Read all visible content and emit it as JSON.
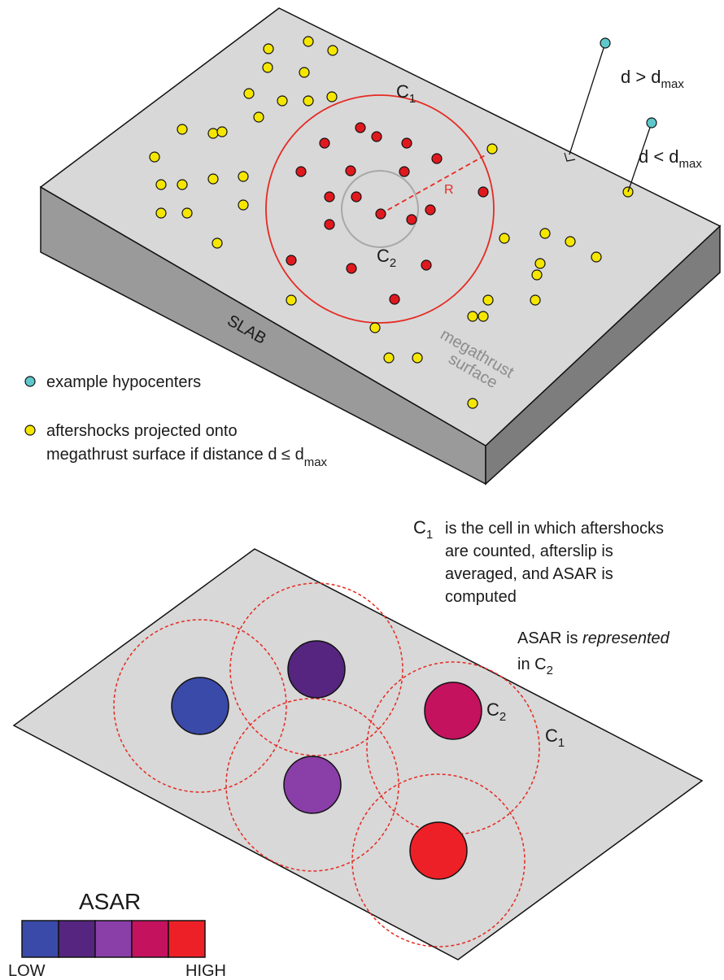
{
  "labels": {
    "c1_top": "C",
    "c1_top_sub": "1",
    "c2_top": "C",
    "c2_top_sub": "2",
    "radius": "R",
    "slab": "SLAB",
    "megathrust_line1": "megathrust",
    "megathrust_line2": "surface",
    "d_gt": "d > d",
    "d_gt_sub": "max",
    "d_lt": "d < d",
    "d_lt_sub": "max"
  },
  "legend": {
    "hypocenters": "example hypocenters",
    "aftershocks_line1": "aftershocks projected onto",
    "aftershocks_line2": "megathrust surface if distance  d ≤ d",
    "aftershocks_sub": "max"
  },
  "explain": {
    "c1_prefix": "C",
    "c1_sub": "1",
    "line1": "is the cell in which aftershocks",
    "line2": "are counted, afterslip is",
    "line3": "averaged, and ASAR is",
    "line4": "computed",
    "asar_line1_a": "ASAR is ",
    "asar_line1_b": "represented",
    "asar_line2_a": "in  C",
    "asar_line2_sub": "2"
  },
  "bottom_labels": {
    "c2": "C",
    "c2_sub": "2",
    "c1": "C",
    "c1_sub": "1"
  },
  "colorbar": {
    "title": "ASAR",
    "low": "LOW",
    "high": "HIGH",
    "colors": [
      "#3a4aa8",
      "#56257f",
      "#8a3ea8",
      "#c4125e",
      "#ee2027"
    ]
  },
  "colors": {
    "surface": "#d8d8d8",
    "slab_side": "#8a8a8a",
    "slab_front": "#9a9a9a",
    "aftershock": "#f5e600",
    "cell_event": "#e0191e",
    "hypocenter": "#5ec8cc",
    "cell_circle": "#e52a22",
    "inner_circle": "#a8a8a8"
  },
  "asar_cells": [
    {
      "name": "cell-low",
      "color": "#3a4aa8"
    },
    {
      "name": "cell-low-mid",
      "color": "#56257f"
    },
    {
      "name": "cell-mid",
      "color": "#8a3ea8"
    },
    {
      "name": "cell-high-mid",
      "color": "#c4125e"
    },
    {
      "name": "cell-high",
      "color": "#ee2027"
    }
  ]
}
